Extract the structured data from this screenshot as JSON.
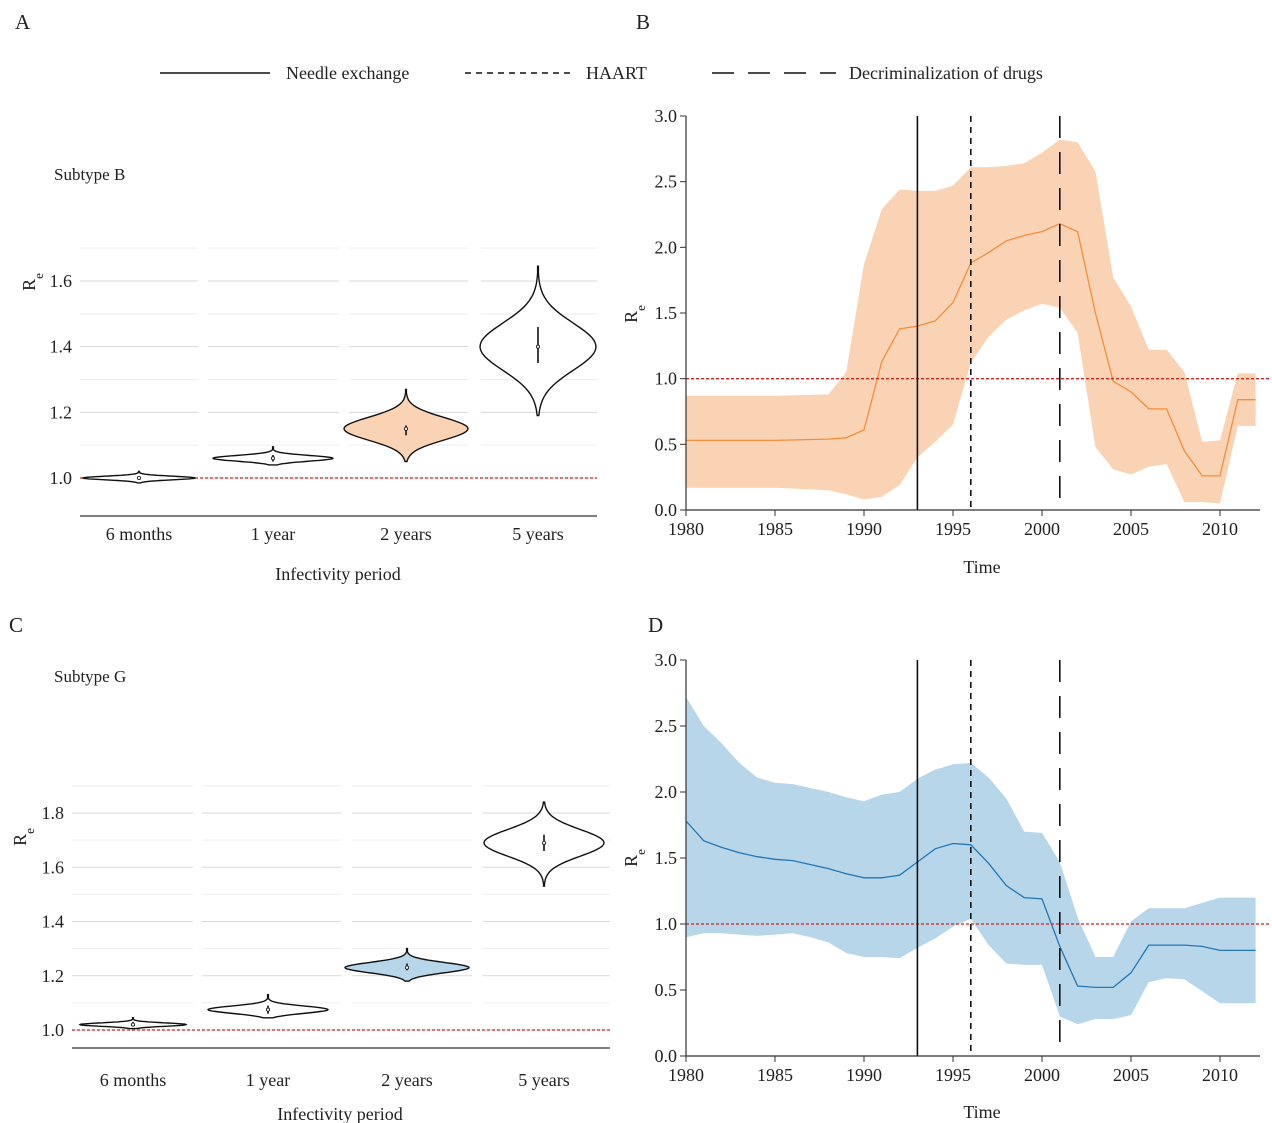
{
  "legend": {
    "items": [
      {
        "label": "Needle exchange",
        "dash": "solid"
      },
      {
        "label": "HAART",
        "dash": "short"
      },
      {
        "label": "Decriminalization of drugs",
        "dash": "long"
      }
    ]
  },
  "colors": {
    "subtype_b": "#f28e3c",
    "subtype_b_fill": "#f9d3b3",
    "subtype_g": "#2277b4",
    "subtype_g_fill": "#b8d6ea",
    "reference_line": "#cc2222",
    "grid": "#d8d8d8"
  },
  "chart_data": [
    {
      "panel": "A",
      "type": "violin",
      "label": "Subtype B",
      "xlabel": "Infectivity period",
      "ylabel": "Re",
      "ylim": [
        0.9,
        1.7
      ],
      "yticks": [
        1.0,
        1.2,
        1.4,
        1.6
      ],
      "ytick_labels": [
        "1.0",
        "1.2",
        "1.4",
        "1.6"
      ],
      "reference_line": 1.0,
      "categories": [
        "6 months",
        "1 year",
        "2 years",
        "5 years"
      ],
      "violins": [
        {
          "median": 1.0,
          "min": 0.985,
          "max": 1.02,
          "iqr": [
            0.997,
            1.005
          ],
          "filled": false
        },
        {
          "median": 1.06,
          "min": 1.04,
          "max": 1.095,
          "iqr": [
            1.05,
            1.07
          ],
          "filled": false
        },
        {
          "median": 1.15,
          "min": 1.05,
          "max": 1.27,
          "iqr": [
            1.13,
            1.16
          ],
          "filled": true
        },
        {
          "median": 1.4,
          "min": 1.19,
          "max": 1.645,
          "iqr": [
            1.35,
            1.46
          ],
          "filled": false
        }
      ],
      "highlight_index": 2
    },
    {
      "panel": "B",
      "type": "area",
      "xlabel": "Time",
      "ylabel": "Re",
      "xlim": [
        1980,
        2013
      ],
      "ylim": [
        0,
        3.0
      ],
      "xticks": [
        1980,
        1985,
        1990,
        1995,
        2000,
        2005,
        2010
      ],
      "xtick_labels": [
        "1980",
        "1985",
        "1990",
        "1995",
        "2000",
        "2005",
        "2010"
      ],
      "yticks": [
        0,
        0.5,
        1.0,
        1.5,
        2.0,
        2.5,
        3.0
      ],
      "ytick_labels": [
        "0.0",
        "0.5",
        "1.0",
        "1.5",
        "2.0",
        "2.5",
        "3.0"
      ],
      "reference_line": 1.0,
      "events": [
        {
          "year": 1993,
          "dash": "solid"
        },
        {
          "year": 1996,
          "dash": "short"
        },
        {
          "year": 2001,
          "dash": "long"
        }
      ],
      "series": [
        {
          "x": [
            1980,
            1985,
            1988,
            1989,
            1990,
            1991,
            1992,
            1993,
            1994,
            1995,
            1996,
            1997,
            1998,
            1999,
            2000,
            2001,
            2002,
            2003,
            2004,
            2005,
            2006,
            2007,
            2008,
            2009,
            2010,
            2011,
            2012
          ],
          "median": [
            0.53,
            0.53,
            0.54,
            0.55,
            0.61,
            1.13,
            1.38,
            1.4,
            1.44,
            1.58,
            1.88,
            1.96,
            2.05,
            2.09,
            2.12,
            2.18,
            2.12,
            1.5,
            0.98,
            0.9,
            0.77,
            0.77,
            0.45,
            0.26,
            0.26,
            0.84,
            0.84
          ],
          "lower": [
            0.17,
            0.17,
            0.15,
            0.12,
            0.08,
            0.1,
            0.19,
            0.4,
            0.52,
            0.65,
            1.12,
            1.32,
            1.45,
            1.52,
            1.57,
            1.54,
            1.35,
            0.48,
            0.31,
            0.27,
            0.33,
            0.35,
            0.06,
            0.06,
            0.05,
            0.64,
            0.64
          ],
          "upper": [
            0.87,
            0.87,
            0.88,
            1.05,
            1.87,
            2.29,
            2.44,
            2.43,
            2.43,
            2.47,
            2.61,
            2.61,
            2.62,
            2.64,
            2.72,
            2.82,
            2.8,
            2.58,
            1.77,
            1.55,
            1.22,
            1.22,
            1.05,
            0.52,
            0.53,
            1.04,
            1.04
          ]
        }
      ]
    },
    {
      "panel": "C",
      "type": "violin",
      "label": "Subtype G",
      "xlabel": "Infectivity period",
      "ylabel": "Re",
      "ylim": [
        0.99,
        1.85
      ],
      "yticks": [
        1.0,
        1.2,
        1.4,
        1.6,
        1.8
      ],
      "ytick_labels": [
        "1.0",
        "1.2",
        "1.4",
        "1.6",
        "1.8"
      ],
      "reference_line": 1.0,
      "categories": [
        "6 months",
        "1 year",
        "2 years",
        "5 years"
      ],
      "violins": [
        {
          "median": 1.02,
          "min": 1.005,
          "max": 1.045,
          "iqr": [
            1.015,
            1.03
          ],
          "filled": false
        },
        {
          "median": 1.075,
          "min": 1.045,
          "max": 1.13,
          "iqr": [
            1.06,
            1.09
          ],
          "filled": false
        },
        {
          "median": 1.23,
          "min": 1.18,
          "max": 1.3,
          "iqr": [
            1.22,
            1.245
          ],
          "filled": true
        },
        {
          "median": 1.69,
          "min": 1.53,
          "max": 1.84,
          "iqr": [
            1.66,
            1.72
          ],
          "filled": false
        }
      ],
      "highlight_index": 2
    },
    {
      "panel": "D",
      "type": "area",
      "xlabel": "Time",
      "ylabel": "Re",
      "xlim": [
        1980,
        2013
      ],
      "ylim": [
        0,
        3.0
      ],
      "xticks": [
        1980,
        1985,
        1990,
        1995,
        2000,
        2005,
        2010
      ],
      "xtick_labels": [
        "1980",
        "1985",
        "1990",
        "1995",
        "2000",
        "2005",
        "2010"
      ],
      "yticks": [
        0,
        0.5,
        1.0,
        1.5,
        2.0,
        2.5,
        3.0
      ],
      "ytick_labels": [
        "0.0",
        "0.5",
        "1.0",
        "1.5",
        "2.0",
        "2.5",
        "3.0"
      ],
      "reference_line": 1.0,
      "events": [
        {
          "year": 1993,
          "dash": "solid"
        },
        {
          "year": 1996,
          "dash": "short"
        },
        {
          "year": 2001,
          "dash": "long"
        }
      ],
      "series": [
        {
          "x": [
            1980,
            1981,
            1982,
            1983,
            1984,
            1985,
            1986,
            1987,
            1988,
            1989,
            1990,
            1991,
            1992,
            1993,
            1994,
            1995,
            1996,
            1997,
            1998,
            1999,
            2000,
            2001,
            2002,
            2003,
            2004,
            2005,
            2006,
            2007,
            2008,
            2009,
            2010,
            2011,
            2012
          ],
          "median": [
            1.78,
            1.63,
            1.58,
            1.54,
            1.51,
            1.49,
            1.48,
            1.45,
            1.42,
            1.38,
            1.35,
            1.35,
            1.37,
            1.47,
            1.57,
            1.61,
            1.6,
            1.46,
            1.29,
            1.2,
            1.19,
            0.83,
            0.53,
            0.52,
            0.52,
            0.63,
            0.84,
            0.84,
            0.84,
            0.83,
            0.8,
            0.8,
            0.8
          ],
          "lower": [
            0.9,
            0.93,
            0.93,
            0.92,
            0.91,
            0.92,
            0.93,
            0.9,
            0.86,
            0.78,
            0.75,
            0.75,
            0.74,
            0.82,
            0.89,
            0.98,
            1.04,
            0.84,
            0.7,
            0.69,
            0.69,
            0.3,
            0.24,
            0.28,
            0.28,
            0.31,
            0.56,
            0.59,
            0.58,
            0.49,
            0.4,
            0.4,
            0.4
          ],
          "upper": [
            2.72,
            2.5,
            2.37,
            2.22,
            2.11,
            2.07,
            2.06,
            2.03,
            2.0,
            1.96,
            1.93,
            1.98,
            2.0,
            2.1,
            2.17,
            2.21,
            2.22,
            2.11,
            1.95,
            1.7,
            1.69,
            1.47,
            1.05,
            0.75,
            0.75,
            1.02,
            1.12,
            1.12,
            1.12,
            1.16,
            1.2,
            1.2,
            1.2
          ]
        }
      ]
    }
  ]
}
